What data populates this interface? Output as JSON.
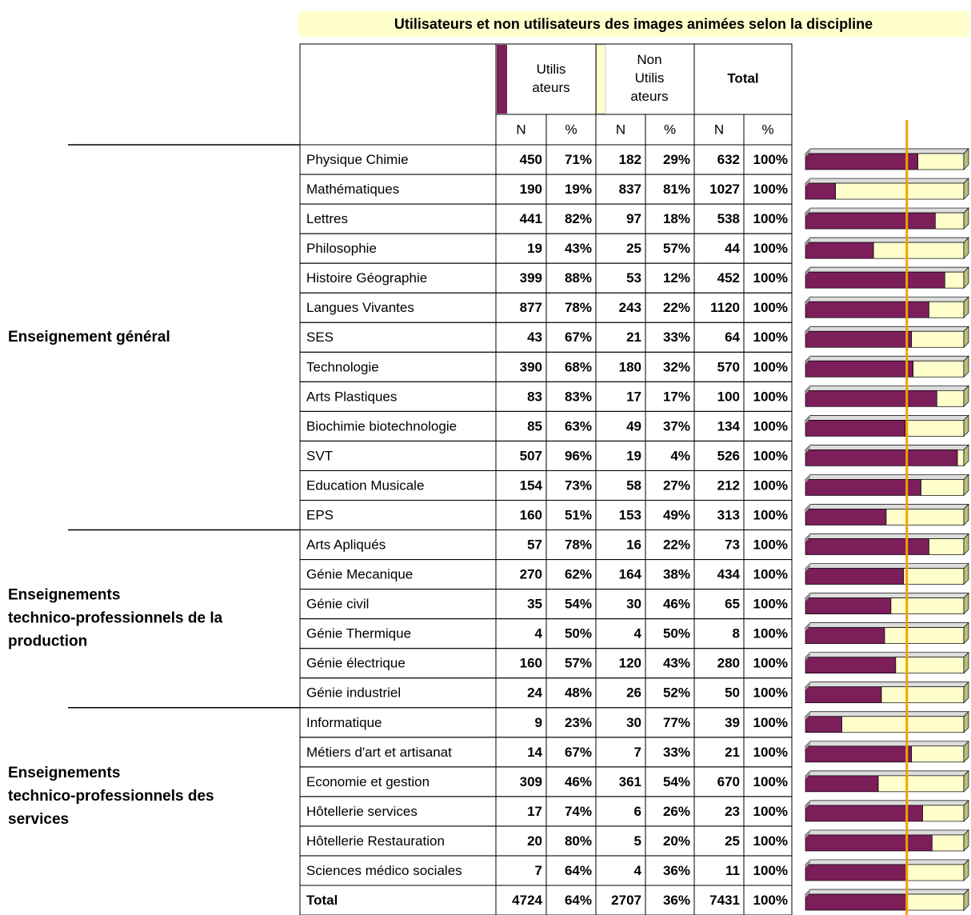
{
  "title": "Utilisateurs et non utilisateurs des images animées selon la discipline",
  "header": {
    "users": "Utilis ateurs",
    "nonusers": "Non Utilis ateurs",
    "total": "Total",
    "sub": [
      "N",
      "%",
      "N",
      "%",
      "N",
      "%"
    ]
  },
  "groups": [
    {
      "label": [
        "Enseignement général"
      ],
      "rows": 13
    },
    {
      "label": [
        "Enseignements",
        "technico-professionnels de la",
        "production"
      ],
      "rows": 6
    },
    {
      "label": [
        "Enseignements",
        "technico-professionnels des",
        "services"
      ],
      "rows": 6
    }
  ],
  "rows": [
    [
      "Physique Chimie",
      450,
      "71%",
      182,
      "29%",
      632,
      "100%"
    ],
    [
      "Mathématiques",
      190,
      "19%",
      837,
      "81%",
      1027,
      "100%"
    ],
    [
      "Lettres",
      441,
      "82%",
      97,
      "18%",
      538,
      "100%"
    ],
    [
      "Philosophie",
      19,
      "43%",
      25,
      "57%",
      44,
      "100%"
    ],
    [
      "Histoire Géographie",
      399,
      "88%",
      53,
      "12%",
      452,
      "100%"
    ],
    [
      "Langues Vivantes",
      877,
      "78%",
      243,
      "22%",
      1120,
      "100%"
    ],
    [
      "SES",
      43,
      "67%",
      21,
      "33%",
      64,
      "100%"
    ],
    [
      "Technologie",
      390,
      "68%",
      180,
      "32%",
      570,
      "100%"
    ],
    [
      "Arts Plastiques",
      83,
      "83%",
      17,
      "17%",
      100,
      "100%"
    ],
    [
      "Biochimie biotechnologie",
      85,
      "63%",
      49,
      "37%",
      134,
      "100%"
    ],
    [
      "SVT",
      507,
      "96%",
      19,
      "4%",
      526,
      "100%"
    ],
    [
      "Education Musicale",
      154,
      "73%",
      58,
      "27%",
      212,
      "100%"
    ],
    [
      "EPS",
      160,
      "51%",
      153,
      "49%",
      313,
      "100%"
    ],
    [
      "Arts Apliqués",
      57,
      "78%",
      16,
      "22%",
      73,
      "100%"
    ],
    [
      "Génie Mecanique",
      270,
      "62%",
      164,
      "38%",
      434,
      "100%"
    ],
    [
      "Génie civil",
      35,
      "54%",
      30,
      "46%",
      65,
      "100%"
    ],
    [
      "Génie Thermique",
      4,
      "50%",
      4,
      "50%",
      8,
      "100%"
    ],
    [
      "Génie électrique",
      160,
      "57%",
      120,
      "43%",
      280,
      "100%"
    ],
    [
      "Génie industriel",
      24,
      "48%",
      26,
      "52%",
      50,
      "100%"
    ],
    [
      "Informatique",
      9,
      "23%",
      30,
      "77%",
      39,
      "100%"
    ],
    [
      "Métiers d'art et artisanat",
      14,
      "67%",
      7,
      "33%",
      21,
      "100%"
    ],
    [
      "Economie et gestion",
      309,
      "46%",
      361,
      "54%",
      670,
      "100%"
    ],
    [
      "Hôtellerie services",
      17,
      "74%",
      6,
      "26%",
      23,
      "100%"
    ],
    [
      "Hôtellerie Restauration",
      20,
      "80%",
      5,
      "20%",
      25,
      "100%"
    ],
    [
      "Sciences médico sociales",
      7,
      "64%",
      4,
      "36%",
      11,
      "100%"
    ]
  ],
  "total": [
    "Total",
    4724,
    "64%",
    2707,
    "36%",
    7431,
    "100%"
  ]
}
